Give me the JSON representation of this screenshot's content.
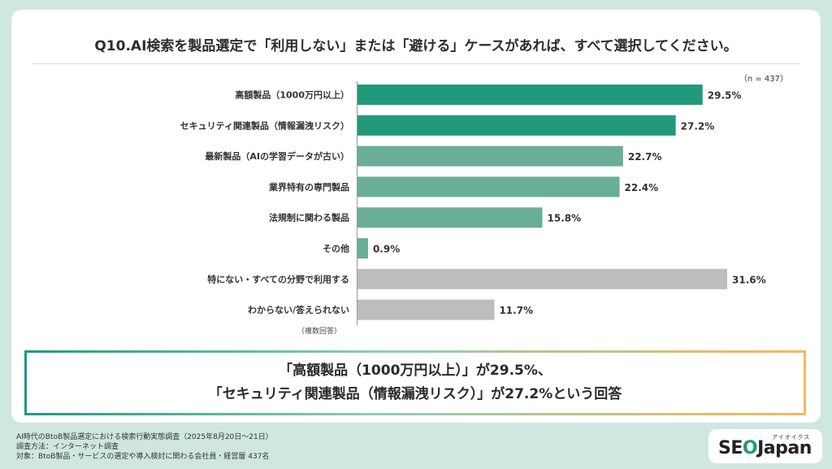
{
  "title": "Q10.AI検索を製品選定で「利用しない」または「避ける」ケースがあれば、すべて選択してください。",
  "sample_size": "（n = 437）",
  "note": "（複数回答）",
  "summary": {
    "line1": "「高額製品（1000万円以上）」が29.5%、",
    "line2": "「セキュリティ関連製品（情報漏洩リスク）」が27.2%という回答"
  },
  "footer": {
    "line1": "AI時代のBtoB製品選定における検索行動実態調査（2025年8月20日～21日）",
    "line2": "調査方法：インターネット調査",
    "line3": "対象：BtoB製品・サービスの選定や導入検討に関わる会社員・経営層 437名"
  },
  "logo": {
    "ruby": "アイオイクス",
    "text_pre": "SE",
    "text_o": "O",
    "text_post": "Japan"
  },
  "colors": {
    "top": "#22997a",
    "mid": "#6aad98",
    "gray": "#bdbdbd"
  },
  "chart_data": {
    "type": "bar",
    "orientation": "horizontal",
    "categories": [
      "高額製品（1000万円以上）",
      "セキュリティ関連製品（情報漏洩リスク）",
      "最新製品（AIの学習データが古い）",
      "業界特有の専門製品",
      "法規制に関わる製品",
      "その他",
      "特にない・すべての分野で利用する",
      "わからない/答えられない"
    ],
    "values": [
      29.5,
      27.2,
      22.7,
      22.4,
      15.8,
      0.9,
      31.6,
      11.7
    ],
    "value_labels": [
      "29.5%",
      "27.2%",
      "22.7%",
      "22.4%",
      "15.8%",
      "0.9%",
      "31.6%",
      "11.7%"
    ],
    "bar_colors": [
      "#22997a",
      "#22997a",
      "#6aad98",
      "#6aad98",
      "#6aad98",
      "#6aad98",
      "#bdbdbd",
      "#bdbdbd"
    ],
    "xlim": [
      0,
      31.6
    ],
    "grid": false
  }
}
